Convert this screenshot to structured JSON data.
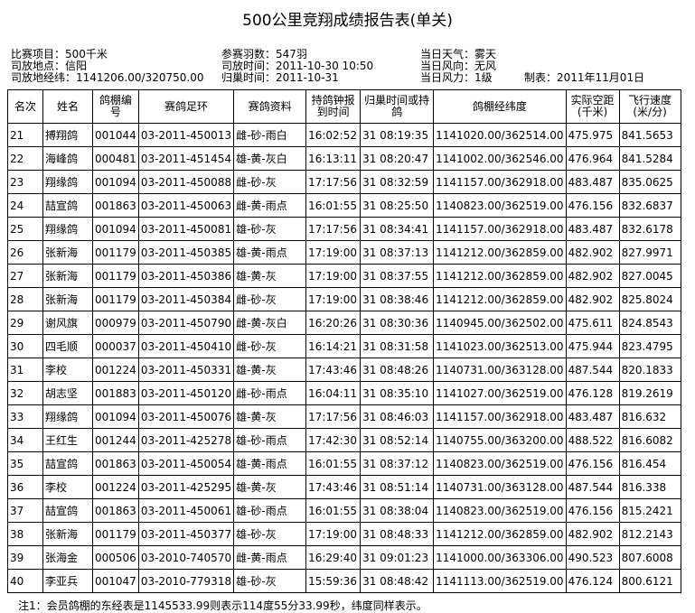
{
  "header": {
    "title": "500公里竞翔成绩报告表(单关)",
    "info": [
      [
        "比赛项目：500千米",
        "司放地点：信阳",
        "司放地经纬：1141206.00/320750.00"
      ],
      [
        "参赛羽数：547羽",
        "司放时间：2011-10-30 10:50",
        "归巢时间：2011-10-31"
      ],
      [
        "当日天气：雾天",
        "当日风向：无风",
        "当日风力：1级"
      ]
    ],
    "date": "制表：2011年11月01日"
  },
  "table": {
    "columns": [
      "名次",
      "姓名",
      "鸽棚编号",
      "赛鸽足环",
      "赛鸽资料",
      "持鸽钟报到时间",
      "归巢时间或持鸽",
      "鸽棚经纬度",
      "实际空距(千米)",
      "飞行速度(米/分)"
    ],
    "rows": [
      [
        "21",
        "搏翔鸽",
        "001044",
        "03-2011-450013",
        "雌-砂-雨白",
        "16:02:52",
        "31 08:19:35",
        "1141020.00/362514.00",
        "475.975",
        "841.5653"
      ],
      [
        "22",
        "海峰鸽",
        "000481",
        "03-2011-451454",
        "雄-黄-灰白",
        "16:13:11",
        "31 08:20:47",
        "1141002.00/362546.00",
        "476.964",
        "841.5284"
      ],
      [
        "23",
        "翔缘鸽",
        "001094",
        "03-2011-450088",
        "雌-砂-灰",
        "17:17:56",
        "31 08:32:59",
        "1141157.00/362918.00",
        "483.487",
        "835.0625"
      ],
      [
        "24",
        "喆宣鸽",
        "001863",
        "03-2011-450063",
        "雌-黄-雨点",
        "16:01:55",
        "31 08:25:50",
        "1140823.00/362519.00",
        "476.156",
        "832.6837"
      ],
      [
        "25",
        "翔缘鸽",
        "001094",
        "03-2011-450081",
        "雄-砂-灰",
        "17:17:56",
        "31 08:34:41",
        "1141157.00/362918.00",
        "483.487",
        "832.6178"
      ],
      [
        "26",
        "张新海",
        "001179",
        "03-2011-450385",
        "雄-黄-雨点",
        "17:19:00",
        "31 08:37:13",
        "1141212.00/362859.00",
        "482.902",
        "827.9971"
      ],
      [
        "27",
        "张新海",
        "001179",
        "03-2011-450386",
        "雄-黄-灰",
        "17:19:00",
        "31 08:37:55",
        "1141212.00/362859.00",
        "482.902",
        "827.0045"
      ],
      [
        "28",
        "张新海",
        "001179",
        "03-2011-450384",
        "雌-砂-灰",
        "17:19:00",
        "31 08:38:46",
        "1141212.00/362859.00",
        "482.902",
        "825.8024"
      ],
      [
        "29",
        "谢风旗",
        "000979",
        "03-2011-450790",
        "雌-黄-灰白",
        "16:20:26",
        "31 08:30:36",
        "1140945.00/362502.00",
        "475.611",
        "824.8543"
      ],
      [
        "30",
        "四毛顺",
        "000037",
        "03-2011-450410",
        "雌-砂-灰",
        "16:14:21",
        "31 08:31:58",
        "1141023.00/362513.00",
        "475.944",
        "823.4795"
      ],
      [
        "31",
        "李校",
        "001224",
        "03-2011-450331",
        "雄-黄-灰",
        "17:43:46",
        "31 08:48:26",
        "1140731.00/363128.00",
        "487.544",
        "820.1833"
      ],
      [
        "32",
        "胡志坚",
        "001883",
        "03-2011-450120",
        "雌-砂-雨点",
        "16:04:11",
        "31 08:35:10",
        "1141027.00/362519.00",
        "476.128",
        "819.2619"
      ],
      [
        "33",
        "翔缘鸽",
        "001094",
        "03-2011-450076",
        "雄-黄-灰",
        "17:17:56",
        "31 08:46:03",
        "1141157.00/362918.00",
        "483.487",
        "816.632"
      ],
      [
        "34",
        "王红生",
        "001244",
        "03-2011-425278",
        "雄-砂-雨点",
        "17:42:30",
        "31 08:52:14",
        "1140755.00/363200.00",
        "488.522",
        "816.6082"
      ],
      [
        "35",
        "喆宣鸽",
        "001863",
        "03-2011-450054",
        "雄-黄-雨点",
        "16:01:55",
        "31 08:37:12",
        "1140823.00/362519.00",
        "476.156",
        "816.454"
      ],
      [
        "36",
        "李校",
        "001224",
        "03-2011-425295",
        "雄-黄-灰",
        "17:43:46",
        "31 08:51:14",
        "1140731.00/363128.00",
        "487.544",
        "816.338"
      ],
      [
        "37",
        "喆宣鸽",
        "001863",
        "03-2011-450061",
        "雄-砂-雨点",
        "16:01:55",
        "31 08:38:04",
        "1140823.00/362519.00",
        "476.156",
        "815.2421"
      ],
      [
        "38",
        "张新海",
        "001179",
        "03-2011-450377",
        "雄-砂-灰",
        "17:19:00",
        "31 08:48:33",
        "1141212.00/362859.00",
        "482.902",
        "812.2143"
      ],
      [
        "39",
        "张海金",
        "000506",
        "03-2010-740570",
        "雌-黄-雨点",
        "16:29:40",
        "31 09:01:23",
        "1141000.00/363306.00",
        "490.523",
        "807.6008"
      ],
      [
        "40",
        "李亚兵",
        "001047",
        "03-2010-779318",
        "雄-砂-灰",
        "15:59:36",
        "31 08:48:42",
        "1141113.00/362519.00",
        "476.124",
        "800.6121"
      ]
    ]
  },
  "footer": {
    "note": "注1：会员鸽棚的东经表是1145533.99则表示114度55分33.99秒，纬度同样表示。"
  }
}
